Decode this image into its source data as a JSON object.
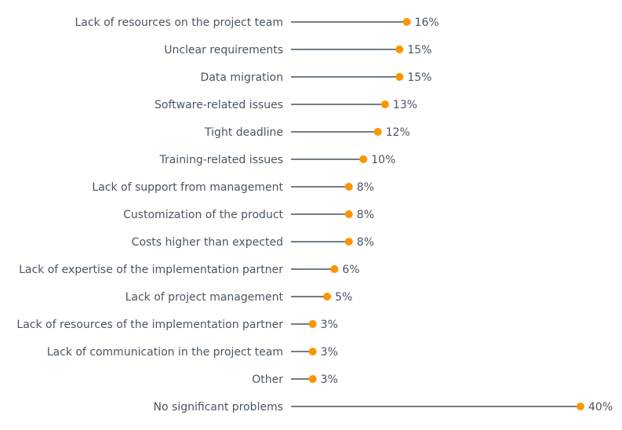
{
  "chart_data": {
    "type": "lollipop",
    "orientation": "horizontal",
    "categories": [
      "Lack of resources on the project team",
      "Unclear requirements",
      "Data migration",
      "Software-related issues",
      "Tight deadline",
      "Training-related issues",
      "Lack of support from management",
      "Customization of the product",
      "Costs higher than expected",
      "Lack of expertise of the implementation partner",
      "Lack of project management",
      "Lack of resources of the implementation partner",
      "Lack of communication in the project team",
      "Other",
      "No significant problems"
    ],
    "values": [
      16,
      15,
      15,
      13,
      12,
      10,
      8,
      8,
      8,
      6,
      5,
      3,
      3,
      3,
      40
    ],
    "value_labels": [
      "16%",
      "15%",
      "15%",
      "13%",
      "12%",
      "10%",
      "8%",
      "8%",
      "8%",
      "6%",
      "5%",
      "3%",
      "3%",
      "3%",
      "40%"
    ],
    "xlim": [
      0,
      40
    ],
    "grid": false,
    "colors": {
      "stem": "#44525f",
      "dot": "#fb9400",
      "text": "#4a5561"
    }
  }
}
